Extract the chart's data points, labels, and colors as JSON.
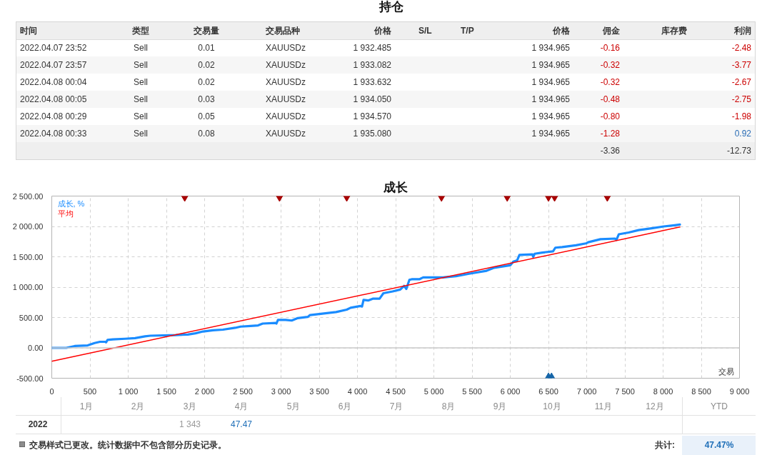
{
  "chart_data": [
    {
      "type": "other",
      "title": "持仓",
      "categories": [
        "时间",
        "类型",
        "交易量",
        "交易品种",
        "价格",
        "S/L",
        "T/P",
        "价格",
        "佣金",
        "库存费",
        "利润"
      ],
      "cell_labels": [
        [
          "2022.04.07 23:52",
          "Sell",
          "0.01",
          "XAUUSDz",
          "1 932.485",
          null,
          null,
          "1 934.965",
          "-0.16",
          null,
          "-2.48"
        ],
        [
          "2022.04.07 23:57",
          "Sell",
          "0.02",
          "XAUUSDz",
          "1 933.082",
          null,
          null,
          "1 934.965",
          "-0.32",
          null,
          "-3.77"
        ],
        [
          "2022.04.08 00:04",
          "Sell",
          "0.02",
          "XAUUSDz",
          "1 933.632",
          null,
          null,
          "1 934.965",
          "-0.32",
          null,
          "-2.67"
        ],
        [
          "2022.04.08 00:05",
          "Sell",
          "0.03",
          "XAUUSDz",
          "1 934.050",
          null,
          null,
          "1 934.965",
          "-0.48",
          null,
          "-2.75"
        ],
        [
          "2022.04.08 00:29",
          "Sell",
          "0.05",
          "XAUUSDz",
          "1 934.570",
          null,
          null,
          "1 934.965",
          "-0.80",
          null,
          "-1.98"
        ],
        [
          "2022.04.08 00:33",
          "Sell",
          "0.08",
          "XAUUSDz",
          "1 935.080",
          null,
          null,
          "1 934.965",
          "-1.28",
          null,
          "0.92"
        ],
        [
          null,
          null,
          null,
          null,
          null,
          null,
          null,
          null,
          "-3.36",
          null,
          "-12.73"
        ]
      ],
      "colors": [
        [
          null,
          null,
          null,
          null,
          null,
          null,
          null,
          null,
          "#cc0000",
          null,
          "#cc0000"
        ],
        [
          null,
          null,
          null,
          null,
          null,
          null,
          null,
          null,
          "#cc0000",
          null,
          "#cc0000"
        ],
        [
          null,
          null,
          null,
          null,
          null,
          null,
          null,
          null,
          "#cc0000",
          null,
          "#cc0000"
        ],
        [
          null,
          null,
          null,
          null,
          null,
          null,
          null,
          null,
          "#cc0000",
          null,
          "#cc0000"
        ],
        [
          null,
          null,
          null,
          null,
          null,
          null,
          null,
          null,
          "#cc0000",
          null,
          "#cc0000"
        ],
        [
          null,
          null,
          null,
          null,
          null,
          null,
          null,
          null,
          "#cc0000",
          null,
          "#2a6db5"
        ],
        [
          null,
          null,
          null,
          null,
          null,
          null,
          null,
          null,
          null,
          null,
          null
        ]
      ]
    },
    {
      "type": "line",
      "title": "成长",
      "xlabel": "交易",
      "xlim": [
        0,
        9000
      ],
      "xticks": [
        0,
        500,
        {
          "value": 1000,
          "label": "1 000"
        },
        {
          "value": 1500,
          "label": "1 500"
        },
        {
          "value": 2000,
          "label": "2 000"
        },
        {
          "value": 2500,
          "label": "2 500"
        },
        {
          "value": 3000,
          "label": "3 000"
        },
        {
          "value": 3500,
          "label": "3 500"
        },
        {
          "value": 4000,
          "label": "4 000"
        },
        {
          "value": 4500,
          "label": "4 500"
        },
        {
          "value": 5000,
          "label": "5 000"
        },
        {
          "value": 5500,
          "label": "5 500"
        },
        {
          "value": 6000,
          "label": "6 000"
        },
        {
          "value": 6500,
          "label": "6 500"
        },
        {
          "value": 7000,
          "label": "7 000"
        },
        {
          "value": 7500,
          "label": "7 500"
        },
        {
          "value": 8000,
          "label": "8 000"
        },
        {
          "value": 8500,
          "label": "8 500"
        },
        {
          "value": 9000,
          "label": "9 000"
        }
      ],
      "ylim": [
        -500,
        2500
      ],
      "yticks": [
        {
          "value": -500,
          "label": "-500.00"
        },
        {
          "value": 0,
          "label": "0.00"
        },
        {
          "value": 500,
          "label": "500.00"
        },
        {
          "value": 1000,
          "label": "1 000.00"
        },
        {
          "value": 1500,
          "label": "1 500.00"
        },
        {
          "value": 2000,
          "label": "2 000.00"
        },
        {
          "value": 2500,
          "label": "2 500.00"
        }
      ],
      "grid": true,
      "legend": "top left",
      "ref_lines": [
        {
          "axis": "y",
          "value": 0,
          "color": "#c8c8c8"
        }
      ],
      "series": [
        {
          "name": "成长, %",
          "color": "#1a8cff",
          "x": [
            0,
            190,
            300,
            470,
            560,
            630,
            700,
            710,
            730,
            800,
            960,
            1090,
            1220,
            1290,
            1620,
            1780,
            1880,
            1980,
            2110,
            2240,
            2400,
            2470,
            2600,
            2700,
            2760,
            2930,
            2940,
            2960,
            3060,
            3140,
            3220,
            3350,
            3380,
            3520,
            3720,
            3860,
            3910,
            4040,
            4060,
            4080,
            4140,
            4200,
            4290,
            4340,
            4460,
            4560,
            4610,
            4640,
            4680,
            4710,
            4810,
            4860,
            5120,
            5290,
            5460,
            5690,
            5790,
            6000,
            6040,
            6090,
            6120,
            6290,
            6300,
            6320,
            6420,
            6560,
            6590,
            6680,
            6860,
            6990,
            7020,
            7180,
            7370,
            7390,
            7420,
            7550,
            7680,
            7850,
            8010,
            8150,
            8220
          ],
          "values": [
            0,
            0,
            30,
            40,
            80,
            100,
            100,
            90,
            130,
            140,
            150,
            160,
            190,
            200,
            210,
            220,
            240,
            270,
            290,
            300,
            330,
            350,
            360,
            370,
            400,
            410,
            400,
            460,
            460,
            450,
            490,
            510,
            540,
            560,
            590,
            630,
            660,
            690,
            680,
            790,
            780,
            810,
            810,
            900,
            930,
            960,
            1020,
            970,
            1120,
            1130,
            1130,
            1160,
            1160,
            1180,
            1220,
            1270,
            1320,
            1360,
            1420,
            1440,
            1530,
            1540,
            1500,
            1550,
            1570,
            1590,
            1650,
            1660,
            1690,
            1720,
            1740,
            1790,
            1800,
            1780,
            1870,
            1900,
            1940,
            1970,
            2000,
            2020,
            2030
          ]
        },
        {
          "name": "平均",
          "color": "#ff0000",
          "type": "line",
          "x": [
            0,
            8220
          ],
          "values": [
            -220,
            1990
          ]
        },
        {
          "type": "scatter",
          "color": "#a80000",
          "marker": "triangle",
          "x": [
            1740,
            2980,
            3860,
            5100,
            5960,
            6500,
            6580,
            7270
          ],
          "values": [
            2500,
            2500,
            2500,
            2500,
            2500,
            2500,
            2500,
            2500
          ]
        },
        {
          "type": "scatter",
          "color": "#1565a8",
          "marker": "triangle",
          "x": [
            6500,
            6540
          ],
          "values": [
            -500,
            -500
          ]
        }
      ]
    },
    {
      "type": "heatmap",
      "categories": [
        "1月",
        "2月",
        "3月",
        "4月",
        "5月",
        "6月",
        "7月",
        "8月",
        "9月",
        "10月",
        "11月",
        "12月",
        "YTD"
      ],
      "y_categories": [
        "2022"
      ],
      "cells": [
        [
          null,
          null,
          1343,
          47.47,
          null,
          null,
          null,
          null,
          null,
          null,
          null,
          null,
          null
        ]
      ],
      "cell_labels": [
        [
          null,
          null,
          "1 343",
          "47.47",
          null,
          null,
          null,
          null,
          null,
          null,
          null,
          null,
          null
        ]
      ],
      "colors": [
        [
          null,
          null,
          "#999999",
          "#1f6fb8",
          null,
          null,
          null,
          null,
          null,
          null,
          null,
          null,
          null
        ]
      ],
      "annotations": [
        "交易样式已更改。统计数据中不包含部分历史记录。",
        "共计:",
        "47.47%"
      ]
    }
  ]
}
